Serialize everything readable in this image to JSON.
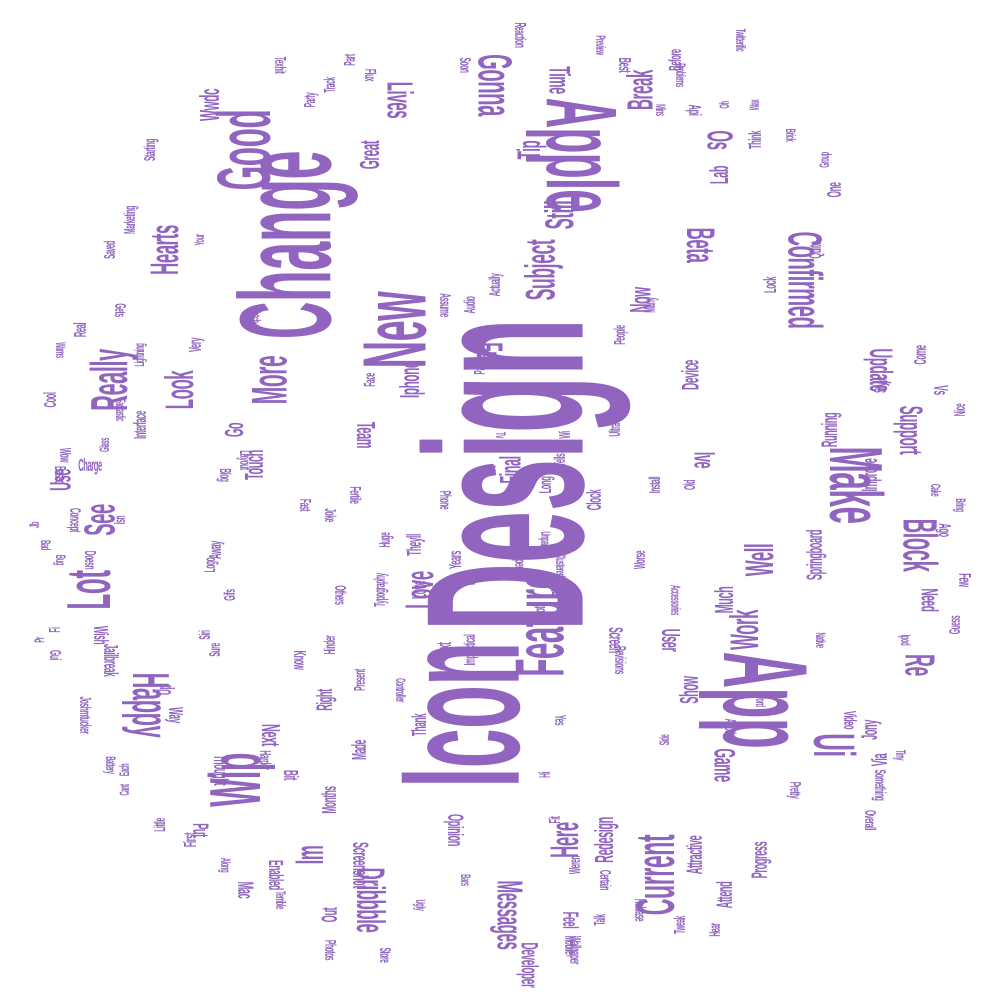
{
  "cloud": {
    "color": "#9064bf",
    "background": "#ffffff",
    "shape": "circle",
    "words": [
      {
        "text": "Design",
        "rot": -90
      },
      {
        "text": "Icon",
        "rot": -90
      },
      {
        "text": "Change",
        "rot": -90
      },
      {
        "text": "App",
        "rot": 90
      },
      {
        "text": "Apple",
        "rot": 90
      },
      {
        "text": "New",
        "rot": -90
      },
      {
        "text": "Good",
        "rot": -90
      },
      {
        "text": "Feature",
        "rot": -90
      },
      {
        "text": "Make",
        "rot": 90
      },
      {
        "text": "Wip",
        "rot": -90
      },
      {
        "text": "Confirmed",
        "rot": 90
      },
      {
        "text": "Current",
        "rot": -90
      },
      {
        "text": "Lot",
        "rot": -90
      },
      {
        "text": "Really",
        "rot": -90
      },
      {
        "text": "Ui",
        "rot": 90
      },
      {
        "text": "Happy",
        "rot": 90
      },
      {
        "text": "Block",
        "rot": 90
      },
      {
        "text": "Gonna",
        "rot": 90
      },
      {
        "text": "Subject",
        "rot": -90
      },
      {
        "text": "More",
        "rot": -90
      },
      {
        "text": "Lives",
        "rot": 90
      },
      {
        "text": "Hearts",
        "rot": -90
      },
      {
        "text": "Love",
        "rot": -90
      },
      {
        "text": "Break",
        "rot": -90
      },
      {
        "text": "Dribbble",
        "rot": 90
      },
      {
        "text": "Messages",
        "rot": 90
      },
      {
        "text": "Full",
        "rot": 90
      },
      {
        "text": "Beta",
        "rot": 90
      },
      {
        "text": "See",
        "rot": -90
      },
      {
        "text": "Look",
        "rot": -90
      },
      {
        "text": "Still",
        "rot": -90
      },
      {
        "text": "Here",
        "rot": -90
      },
      {
        "text": "Work",
        "rot": -90
      },
      {
        "text": "Well",
        "rot": -90
      },
      {
        "text": "Im",
        "rot": -90
      },
      {
        "text": "Re",
        "rot": 90
      },
      {
        "text": "Update",
        "rot": 90
      },
      {
        "text": "Support",
        "rot": 90
      },
      {
        "text": "Tip",
        "rot": -90
      },
      {
        "text": "Os",
        "rot": 90
      },
      {
        "text": "Time",
        "rot": 90
      },
      {
        "text": "Great",
        "rot": -90
      },
      {
        "text": "Wwdc",
        "rot": -90
      },
      {
        "text": "Use",
        "rot": -90
      },
      {
        "text": "Iphone",
        "rot": -90
      },
      {
        "text": "Now",
        "rot": -90
      },
      {
        "text": "Redesign",
        "rot": -90
      },
      {
        "text": "Game",
        "rot": 90
      },
      {
        "text": "Developer",
        "rot": 90
      },
      {
        "text": "Final",
        "rot": -90
      },
      {
        "text": "Ive",
        "rot": 90
      },
      {
        "text": "Touch",
        "rot": -90
      },
      {
        "text": "Much",
        "rot": -90
      },
      {
        "text": "Next",
        "rot": 90
      },
      {
        "text": "User",
        "rot": 90
      },
      {
        "text": "Show",
        "rot": -90
      },
      {
        "text": "Team",
        "rot": 90
      },
      {
        "text": "Go",
        "rot": -90
      },
      {
        "text": "Lab",
        "rot": -90
      },
      {
        "text": "Springboard",
        "rot": -90
      },
      {
        "text": "Improve",
        "rot": -90
      },
      {
        "text": "Running",
        "rot": -90
      },
      {
        "text": "Device",
        "rot": -90
      },
      {
        "text": "Need",
        "rot": 90
      },
      {
        "text": "Jony",
        "rot": -90
      },
      {
        "text": "Via",
        "rot": -90
      },
      {
        "text": "Progress",
        "rot": -90
      },
      {
        "text": "Attend",
        "rot": -90
      },
      {
        "text": "Attractive",
        "rot": -90
      },
      {
        "text": "Feel",
        "rot": 90
      },
      {
        "text": "Opinion",
        "rot": 90
      },
      {
        "text": "Screenshot",
        "rot": 90
      },
      {
        "text": "Right",
        "rot": -90
      },
      {
        "text": "Put",
        "rot": 90
      },
      {
        "text": "Out",
        "rot": -90
      },
      {
        "text": "Mac",
        "rot": 90
      },
      {
        "text": "Enabled",
        "rot": 90
      },
      {
        "text": "Months",
        "rot": -90
      },
      {
        "text": "Bit",
        "rot": 90
      },
      {
        "text": "Made",
        "rot": -90
      },
      {
        "text": "Thank",
        "rot": -90
      },
      {
        "text": "Love",
        "rot": -90
      },
      {
        "text": "Jailbreak",
        "rot": 90
      },
      {
        "text": "Wish",
        "rot": 90
      },
      {
        "text": "Thought",
        "rot": 90
      },
      {
        "text": "Way",
        "rot": 90
      },
      {
        "text": "Up",
        "rot": -90
      },
      {
        "text": "Text",
        "rot": -90
      },
      {
        "text": "Flat",
        "rot": -90
      },
      {
        "text": "Screen",
        "rot": 90
      },
      {
        "text": "Theyll",
        "rot": -90
      },
      {
        "text": "Clock",
        "rot": -90
      },
      {
        "text": "Long",
        "rot": -90
      },
      {
        "text": "Years",
        "rot": -90
      },
      {
        "text": "Know",
        "rot": 90
      },
      {
        "text": "Away",
        "rot": -90
      },
      {
        "text": "Interface",
        "rot": -90
      },
      {
        "text": "Very",
        "rot": -90
      },
      {
        "text": "Real",
        "rot": -90
      },
      {
        "text": "Cool",
        "rot": -90
      },
      {
        "text": "Charge",
        "rot": 0
      },
      {
        "text": "Vs",
        "rot": 90
      },
      {
        "text": "One",
        "rot": -90
      },
      {
        "text": "Quite",
        "rot": -90
      },
      {
        "text": "Think",
        "rot": -90
      },
      {
        "text": "Api",
        "rot": 90
      },
      {
        "text": "Best",
        "rot": 90
      },
      {
        "text": "Before",
        "rot": -90
      },
      {
        "text": "Reaction",
        "rot": 90
      },
      {
        "text": "Soon",
        "rot": 90
      },
      {
        "text": "Lock",
        "rot": -90
      },
      {
        "text": "Come",
        "rot": -90
      },
      {
        "text": "Style",
        "rot": -90
      },
      {
        "text": "Nice",
        "rot": -90
      },
      {
        "text": "Ago",
        "rot": 90
      },
      {
        "text": "Few",
        "rot": 90
      },
      {
        "text": "Guess",
        "rot": -90
      },
      {
        "text": "Video",
        "rot": 90
      },
      {
        "text": "Overall",
        "rot": 90
      },
      {
        "text": "Pretty",
        "rot": 90
      },
      {
        "text": "Something",
        "rot": 90
      },
      {
        "text": "Tweak",
        "rot": -90
      },
      {
        "text": "Release",
        "rot": 90
      },
      {
        "text": "Talk",
        "rot": -90
      },
      {
        "text": "Hi",
        "rot": -90
      },
      {
        "text": "Another",
        "rot": 90
      },
      {
        "text": "Yes",
        "rot": 90
      },
      {
        "text": "Fit",
        "rot": -90
      },
      {
        "text": "Weren",
        "rot": -90
      },
      {
        "text": "Certain",
        "rot": 90
      },
      {
        "text": "Mobile",
        "rot": 90
      },
      {
        "text": "Hear",
        "rot": -90
      },
      {
        "text": "Wallpaper",
        "rot": 90
      },
      {
        "text": "Store",
        "rot": 90
      },
      {
        "text": "Photos",
        "rot": 90
      },
      {
        "text": "First",
        "rot": -90
      },
      {
        "text": "Little",
        "rot": -90
      },
      {
        "text": "Siri",
        "rot": -90
      },
      {
        "text": "Gifs",
        "rot": -90
      },
      {
        "text": "Logo",
        "rot": -90
      },
      {
        "text": "Sure",
        "rot": -90
      },
      {
        "text": "Harder",
        "rot": 90
      },
      {
        "text": "Joshmtucker",
        "rot": 90
      },
      {
        "text": "Doesn",
        "rot": 90
      },
      {
        "text": "Isn",
        "rot": -90
      },
      {
        "text": "Based",
        "rot": 90
      },
      {
        "text": "Wow",
        "rot": 90
      },
      {
        "text": "Fi",
        "rot": -90
      },
      {
        "text": "Gui",
        "rot": 90
      },
      {
        "text": "Concept",
        "rot": 90
      },
      {
        "text": "Face",
        "rot": -90
      },
      {
        "text": "Layout",
        "rot": 90
      },
      {
        "text": "Blog",
        "rot": 90
      },
      {
        "text": "Panorama",
        "rot": -90
      },
      {
        "text": "Audio",
        "rot": -90
      },
      {
        "text": "Actually",
        "rot": -90
      },
      {
        "text": "People",
        "rot": -90
      },
      {
        "text": "Many",
        "rot": -90
      },
      {
        "text": "Lite",
        "rot": -90
      },
      {
        "text": "Wi",
        "rot": -90
      },
      {
        "text": "Ultra",
        "rot": -90
      },
      {
        "text": "Tells",
        "rot": -90
      },
      {
        "text": "Others",
        "rot": 90
      },
      {
        "text": "Hinder",
        "rot": -90
      },
      {
        "text": "Huge",
        "rot": -90
      },
      {
        "text": "Fertile",
        "rot": 90
      },
      {
        "text": "Both",
        "rot": -90
      },
      {
        "text": "Phone",
        "rot": 90
      },
      {
        "text": "War",
        "rot": -90
      },
      {
        "text": "Paper",
        "rot": 90
      },
      {
        "text": "Worse",
        "rot": -90
      },
      {
        "text": "Old",
        "rot": -90
      },
      {
        "text": "Install",
        "rot": -90
      },
      {
        "text": "Revisions",
        "rot": 90
      },
      {
        "text": "Impractical",
        "rot": -90
      },
      {
        "text": "Present",
        "rot": -90
      },
      {
        "text": "Fast",
        "rot": 90
      },
      {
        "text": "Joke",
        "rot": 90
      },
      {
        "text": "Typography",
        "rot": -90
      },
      {
        "text": "Assume",
        "rot": 90
      },
      {
        "text": "Gets",
        "rot": 90
      },
      {
        "text": "Saved",
        "rot": -90
      },
      {
        "text": "Marketing",
        "rot": -90
      },
      {
        "text": "Starting",
        "rot": -90
      },
      {
        "text": "Track",
        "rot": -90
      },
      {
        "text": "Part",
        "rot": -90
      },
      {
        "text": "Flux",
        "rot": 90
      },
      {
        "text": "Texhit",
        "rot": 90
      },
      {
        "text": "Party",
        "rot": -90
      },
      {
        "text": "Mins",
        "rot": 90
      },
      {
        "text": "Preview",
        "rot": 90
      },
      {
        "text": "Problems",
        "rot": 90
      },
      {
        "text": "Twitterific",
        "rot": 90
      },
      {
        "text": "Oh",
        "rot": -90
      },
      {
        "text": "Wax",
        "rot": -90
      },
      {
        "text": "Brick",
        "rot": 90
      },
      {
        "text": "Group",
        "rot": -90
      },
      {
        "text": "Glass",
        "rot": -90
      },
      {
        "text": "Fantastic",
        "rot": 90
      },
      {
        "text": "Lightning",
        "rot": -90
      },
      {
        "text": "Battery",
        "rot": 90
      },
      {
        "text": "Cant",
        "rot": -90
      },
      {
        "text": "Each",
        "rot": -90
      },
      {
        "text": "Ugly",
        "rot": 90
      },
      {
        "text": "Bars",
        "rot": 90
      },
      {
        "text": "Along",
        "rot": 90
      },
      {
        "text": "Terrible",
        "rot": 90
      },
      {
        "text": "Accessories",
        "rot": 90
      },
      {
        "text": "Native",
        "rot": 90
      },
      {
        "text": "Bring",
        "rot": 90
      },
      {
        "text": "Cake",
        "rot": 90
      },
      {
        "text": "Ipod",
        "rot": 90
      },
      {
        "text": "Pr",
        "rot": -90
      },
      {
        "text": "Bug",
        "rot": 90
      },
      {
        "text": "Bad",
        "rot": 90
      },
      {
        "text": "Jb",
        "rot": -90
      },
      {
        "text": "Warns",
        "rot": 90
      },
      {
        "text": "Watch",
        "rot": 90
      },
      {
        "text": "Your",
        "rot": -90
      },
      {
        "text": "Word",
        "rot": 90
      },
      {
        "text": "Side",
        "rot": -90
      },
      {
        "text": "Controller",
        "rot": 90
      },
      {
        "text": "Unpaid",
        "rot": 90
      },
      {
        "text": "Clustered",
        "rot": 90
      },
      {
        "text": "Tv",
        "rot": 90
      },
      {
        "text": "Bild",
        "rot": 90
      },
      {
        "text": "Tiny",
        "rot": 90
      }
    ]
  }
}
